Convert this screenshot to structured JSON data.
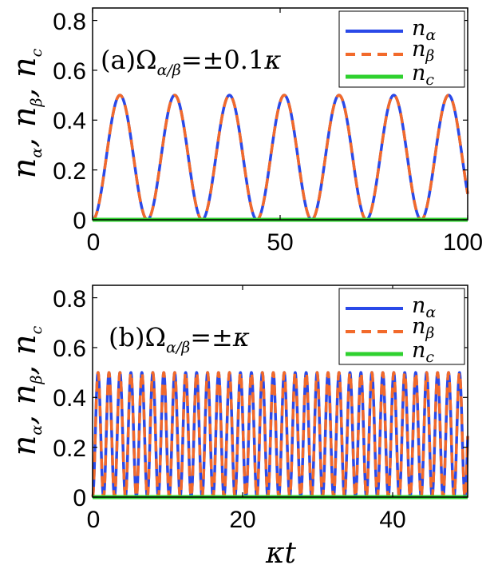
{
  "chart_data": [
    {
      "type": "line",
      "panel_label": "(a)",
      "annotation": {
        "prefix": "(a)",
        "symbol": "Ω",
        "subscript": "α/β",
        "relation": "=±0.1",
        "suffix": "κ"
      },
      "xlim": [
        0,
        100
      ],
      "ylim": [
        0,
        0.85
      ],
      "xticks": [
        "0",
        "50",
        "100"
      ],
      "xtick_values": [
        0,
        50,
        100
      ],
      "yticks": [
        "0",
        "0.2",
        "0.4",
        "0.6",
        "0.8"
      ],
      "ytick_values": [
        0,
        0.2,
        0.4,
        0.6,
        0.8
      ],
      "ylabel": {
        "n1": "n",
        "s1": "α",
        "n2": "n",
        "s2": "β",
        "n3": "n",
        "s3": "c"
      },
      "xlabel": "",
      "legend_position": "top-right",
      "series": [
        {
          "name": "n_α",
          "base": "n",
          "sub": "α",
          "color": "#2a49e8",
          "style": "solid",
          "amplitude": 0.5,
          "period": 14.6,
          "x_samples": [
            0,
            7.3,
            14.6,
            21.9,
            29.2,
            36.5,
            43.8,
            51.1,
            58.4,
            65.7,
            73.0,
            80.3,
            87.6,
            94.9,
            100
          ]
        },
        {
          "name": "n_β",
          "base": "n",
          "sub": "β",
          "color": "#f26a2b",
          "style": "dashed",
          "amplitude": 0.5,
          "period": 14.6,
          "x_samples": [
            0,
            7.3,
            14.6,
            21.9,
            29.2,
            36.5,
            43.8,
            51.1,
            58.4,
            65.7,
            73.0,
            80.3,
            87.6,
            94.9,
            100
          ]
        },
        {
          "name": "n_c",
          "base": "n",
          "sub": "c",
          "color": "#2fd12f",
          "style": "solid",
          "constant": 0.0
        }
      ]
    },
    {
      "type": "line",
      "panel_label": "(b)",
      "annotation": {
        "prefix": "(b)",
        "symbol": "Ω",
        "subscript": "α/β",
        "relation": "=±",
        "suffix": "κ"
      },
      "xlim": [
        0,
        50
      ],
      "ylim": [
        0,
        0.85
      ],
      "xticks": [
        "0",
        "20",
        "40"
      ],
      "xtick_values": [
        0,
        20,
        40
      ],
      "yticks": [
        "0",
        "0.2",
        "0.4",
        "0.6",
        "0.8"
      ],
      "ytick_values": [
        0,
        0.2,
        0.4,
        0.6,
        0.8
      ],
      "ylabel": {
        "n1": "n",
        "s1": "α",
        "n2": "n",
        "s2": "β",
        "n3": "n",
        "s3": "c"
      },
      "xlabel": "κt",
      "legend_position": "top-right",
      "series": [
        {
          "name": "n_α",
          "base": "n",
          "sub": "α",
          "color": "#2a49e8",
          "style": "solid",
          "amplitude": 0.5,
          "period": 1.46
        },
        {
          "name": "n_β",
          "base": "n",
          "sub": "β",
          "color": "#f26a2b",
          "style": "dashed",
          "amplitude": 0.5,
          "period": 1.46
        },
        {
          "name": "n_c",
          "base": "n",
          "sub": "c",
          "color": "#2fd12f",
          "style": "solid",
          "constant": 0.0
        }
      ]
    }
  ]
}
